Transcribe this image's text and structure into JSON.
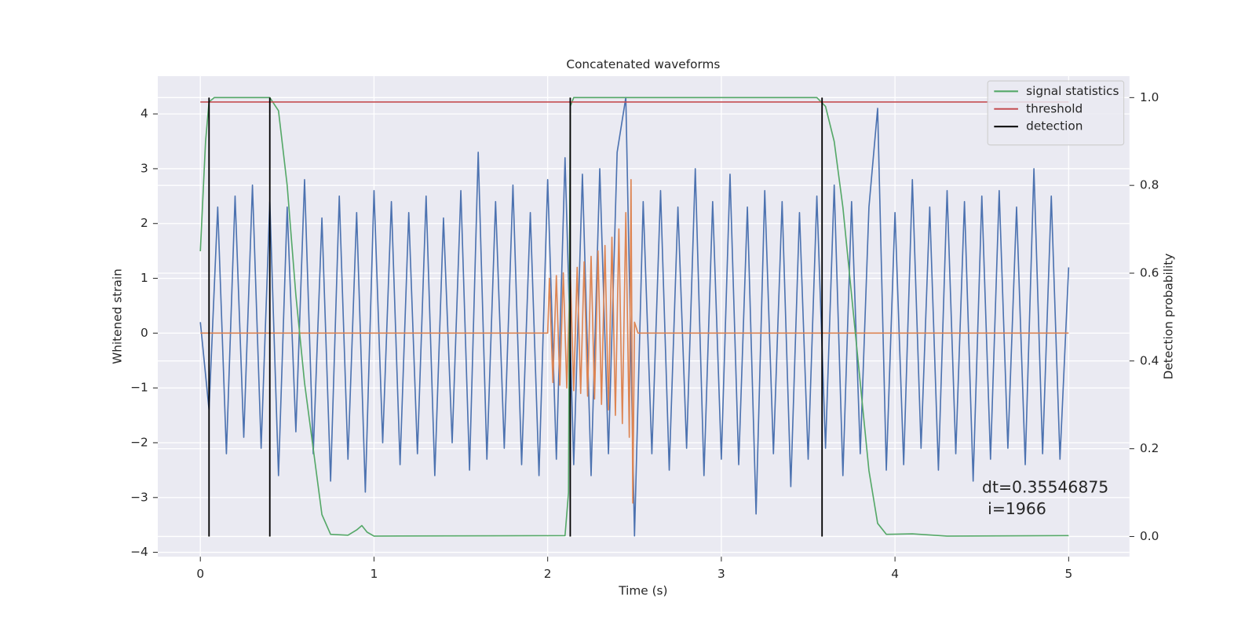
{
  "chart_data": {
    "type": "line",
    "title": "Concatenated waveforms",
    "xlabel": "Time (s)",
    "ylabel": "Whitened strain",
    "y2label": "Detection probability",
    "xlim": [
      -0.245,
      5.35
    ],
    "ylim": [
      -4.08,
      4.69
    ],
    "y2lim": [
      -0.046,
      1.049
    ],
    "xticks": [
      0,
      1,
      2,
      3,
      4,
      5
    ],
    "yticks": [
      {
        "value": -4,
        "label": "−4"
      },
      {
        "value": -3,
        "label": "−3"
      },
      {
        "value": -2,
        "label": "−2"
      },
      {
        "value": -1,
        "label": "−1"
      },
      0,
      1,
      2,
      3,
      4
    ],
    "y2ticks": [
      {
        "value": 0,
        "label": "0.0"
      },
      0.2,
      0.4,
      0.6,
      0.8,
      {
        "value": 1,
        "label": "1.0"
      }
    ],
    "grid": true,
    "legend": "upper right",
    "series": [
      {
        "color": "#4c72b0",
        "x": [
          0,
          0.05,
          0.1,
          0.15,
          0.2,
          0.25,
          0.3,
          0.35,
          0.4,
          0.45,
          0.5,
          0.55,
          0.6,
          0.65,
          0.7,
          0.75,
          0.8,
          0.85,
          0.9,
          0.95,
          1,
          1.05,
          1.1,
          1.15,
          1.2,
          1.25,
          1.3,
          1.35,
          1.4,
          1.45,
          1.5,
          1.55,
          1.6,
          1.65,
          1.7,
          1.75,
          1.8,
          1.85,
          1.9,
          1.95,
          2,
          2.05,
          2.1,
          2.15,
          2.2,
          2.25,
          2.3,
          2.35,
          2.4,
          2.45,
          2.5,
          2.55,
          2.6,
          2.65,
          2.7,
          2.75,
          2.8,
          2.85,
          2.9,
          2.95,
          3,
          3.05,
          3.1,
          3.15,
          3.2,
          3.25,
          3.3,
          3.35,
          3.4,
          3.45,
          3.5,
          3.55,
          3.6,
          3.65,
          3.7,
          3.75,
          3.8,
          3.85,
          3.9,
          3.95,
          4,
          4.05,
          4.1,
          4.15,
          4.2,
          4.25,
          4.3,
          4.35,
          4.4,
          4.45,
          4.5,
          4.55,
          4.6,
          4.65,
          4.7,
          4.75,
          4.8,
          4.85,
          4.9,
          4.95,
          5
        ],
        "values": [
          0.2,
          -1.4,
          2.3,
          -2.2,
          2.5,
          -1.9,
          2.7,
          -2.1,
          2.4,
          -2.6,
          2.3,
          -1.8,
          2.8,
          -2.2,
          2.1,
          -2.7,
          2.5,
          -2.3,
          2.2,
          -2.9,
          2.6,
          -2.0,
          2.4,
          -2.4,
          2.2,
          -2.2,
          2.5,
          -2.6,
          2.1,
          -2.0,
          2.6,
          -2.5,
          3.3,
          -2.3,
          2.4,
          -2.1,
          2.7,
          -2.4,
          2.2,
          -2.6,
          2.8,
          -2.3,
          3.2,
          -2.4,
          2.9,
          -2.6,
          3.0,
          -2.2,
          3.3,
          4.3,
          -3.7,
          2.4,
          -2.2,
          2.6,
          -2.5,
          2.3,
          -2.1,
          3.0,
          -2.6,
          2.4,
          -2.3,
          2.9,
          -2.4,
          2.3,
          -3.3,
          2.6,
          -2.2,
          2.4,
          -2.8,
          2.2,
          -2.3,
          2.5,
          -2.1,
          2.7,
          -2.6,
          2.4,
          -2.2,
          2.3,
          4.1,
          -2.5,
          2.2,
          -2.4,
          2.8,
          -2.1,
          2.3,
          -2.5,
          2.6,
          -2.2,
          2.4,
          -2.7,
          2.5,
          -2.3,
          2.6,
          -2.1,
          2.3,
          -2.4,
          3.0,
          -2.2,
          2.5,
          -2.3,
          1.2
        ]
      },
      {
        "color": "#dd8452",
        "x": [
          0,
          2,
          2.01,
          2.03,
          2.05,
          2.07,
          2.09,
          2.11,
          2.13,
          2.15,
          2.17,
          2.19,
          2.21,
          2.23,
          2.25,
          2.27,
          2.29,
          2.31,
          2.33,
          2.35,
          2.37,
          2.39,
          2.41,
          2.43,
          2.45,
          2.47,
          2.48,
          2.49,
          2.5,
          2.52,
          5
        ],
        "values": [
          0,
          0,
          1.0,
          -0.9,
          1.05,
          -0.95,
          1.1,
          -1.0,
          1.15,
          -1.05,
          1.2,
          -1.1,
          1.3,
          -1.15,
          1.4,
          -1.2,
          1.5,
          -1.3,
          1.6,
          -1.4,
          1.75,
          -1.5,
          1.9,
          -1.65,
          2.2,
          -1.9,
          2.8,
          -3.1,
          0.2,
          0,
          0
        ]
      },
      {
        "name": "signal statistics",
        "color": "#55a868",
        "axis": "y2",
        "x": [
          0,
          0.03,
          0.05,
          0.08,
          0.4,
          0.45,
          0.5,
          0.55,
          0.6,
          0.65,
          0.7,
          0.75,
          0.85,
          0.9,
          0.93,
          0.96,
          1,
          2.1,
          2.12,
          2.13,
          2.15,
          3.55,
          3.6,
          3.65,
          3.7,
          3.75,
          3.8,
          3.85,
          3.9,
          3.95,
          4.1,
          4.3,
          5
        ],
        "values": [
          0.65,
          0.9,
          0.99,
          1.0,
          1.0,
          0.97,
          0.8,
          0.55,
          0.35,
          0.2,
          0.05,
          0.005,
          0.003,
          0.015,
          0.025,
          0.01,
          0.001,
          0.002,
          0.1,
          0.98,
          1.0,
          1.0,
          0.98,
          0.9,
          0.75,
          0.55,
          0.35,
          0.15,
          0.03,
          0.005,
          0.006,
          0.001,
          0.002
        ]
      },
      {
        "name": "threshold",
        "color": "#c44e52",
        "axis": "y2",
        "x": [
          0,
          5
        ],
        "values": [
          0.99,
          0.99
        ]
      }
    ],
    "detection": {
      "name": "detection",
      "color": "#000000",
      "axis": "y2",
      "x": [
        0.05,
        0.4,
        2.13,
        3.58
      ],
      "span": [
        0,
        1
      ]
    },
    "annotations": [
      "dt=0.35546875",
      "i=1966"
    ]
  }
}
